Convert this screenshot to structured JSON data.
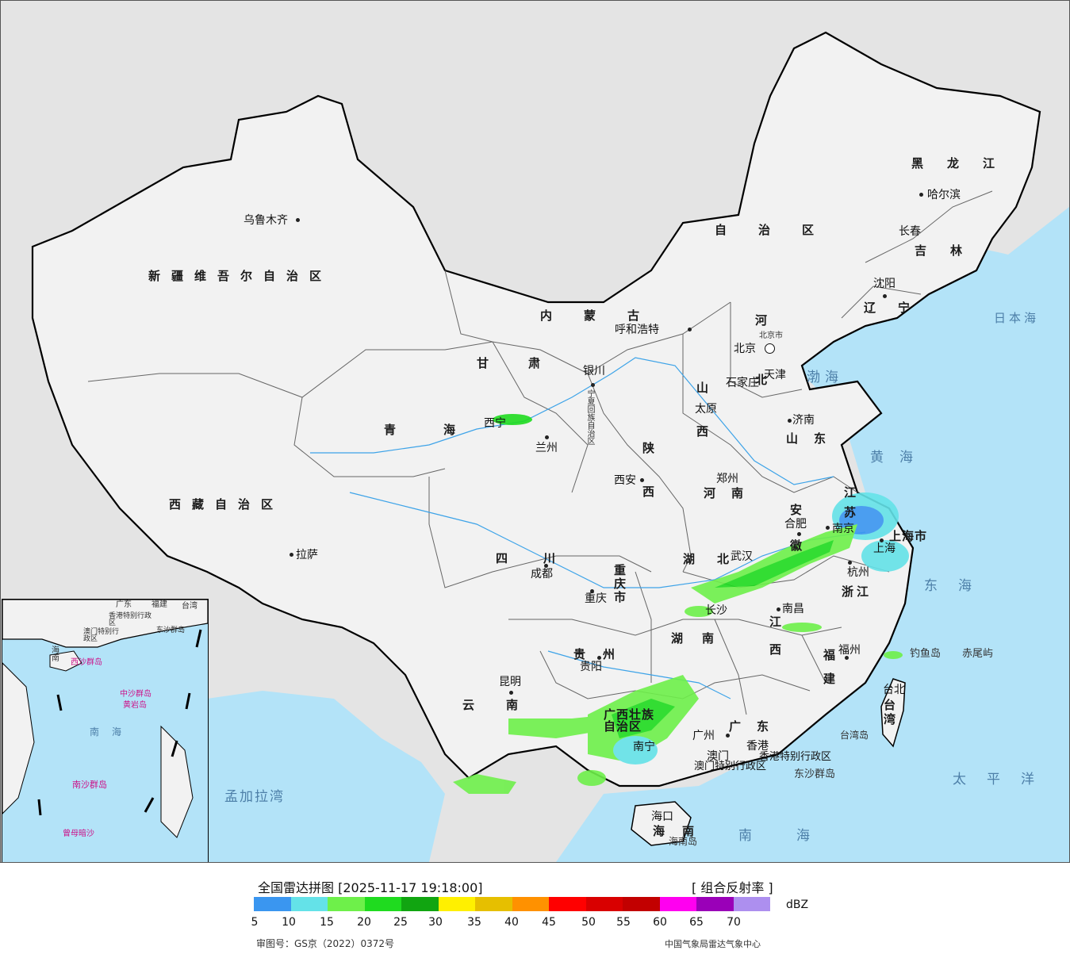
{
  "map": {
    "regions": [
      "新疆维吾尔自治区",
      "西藏自治区",
      "青海",
      "甘肃",
      "内蒙古",
      "自治区",
      "黑龙江",
      "吉林",
      "辽宁",
      "河北",
      "山西",
      "陕西",
      "河南",
      "山东",
      "江苏",
      "安徽",
      "湖北",
      "湖南",
      "江西",
      "浙江",
      "福建",
      "广东",
      "广西壮族自治区",
      "贵州",
      "云南",
      "四川",
      "重庆市",
      "海南",
      "台湾",
      "宁夏回族自治区",
      "上海市"
    ],
    "cities": [
      "乌鲁木齐",
      "拉萨",
      "西宁",
      "兰州",
      "银川",
      "呼和浩特",
      "北京",
      "北京市",
      "天津",
      "石家庄",
      "太原",
      "济南",
      "西安",
      "郑州",
      "合肥",
      "南京",
      "上海",
      "杭州",
      "武汉",
      "长沙",
      "南昌",
      "福州",
      "台北",
      "贵阳",
      "重庆",
      "成都",
      "昆明",
      "南宁",
      "广州",
      "香港",
      "澳门",
      "海口",
      "哈尔滨",
      "长春",
      "沈阳",
      "天津"
    ],
    "seas": [
      "日本海",
      "渤海",
      "黄海",
      "东海",
      "太平洋",
      "南海",
      "孟加拉湾"
    ],
    "islands": [
      "钓鱼岛",
      "赤尾屿",
      "台湾岛",
      "东沙群岛",
      "海南岛"
    ],
    "sar": [
      "香港特别行政区",
      "澳门特别行政区"
    ],
    "inset_labels": [
      "广东",
      "福建",
      "台湾",
      "香港特别行政区",
      "澳门特别行政区",
      "东沙群岛",
      "海南",
      "西沙群岛",
      "中沙群岛",
      "黄岩岛",
      "南海",
      "南沙群岛",
      "曾母暗沙"
    ],
    "accent_colors": {
      "sea": "#b3e3f8",
      "land": "#f2f2f2",
      "border": "#000000",
      "outside": "#e4e4e4"
    }
  },
  "legend": {
    "title": "全国雷达拼图 [2025-11-17 19:18:00]",
    "product": "[ 组合反射率 ]",
    "unit": "dBZ",
    "ticks": [
      "5",
      "10",
      "15",
      "20",
      "25",
      "30",
      "35",
      "40",
      "45",
      "50",
      "55",
      "60",
      "65",
      "70"
    ],
    "colors": [
      "#3a96f0",
      "#64e2e8",
      "#6ef04a",
      "#1fdb1f",
      "#11a511",
      "#fff000",
      "#e6bf00",
      "#ff9100",
      "#ff0000",
      "#d90000",
      "#c20000",
      "#ff00f0",
      "#9a00b8",
      "#ad8fef"
    ],
    "approval": "审图号：GS京（2022）0372号",
    "credit": "中国气象局雷达气象中心"
  }
}
